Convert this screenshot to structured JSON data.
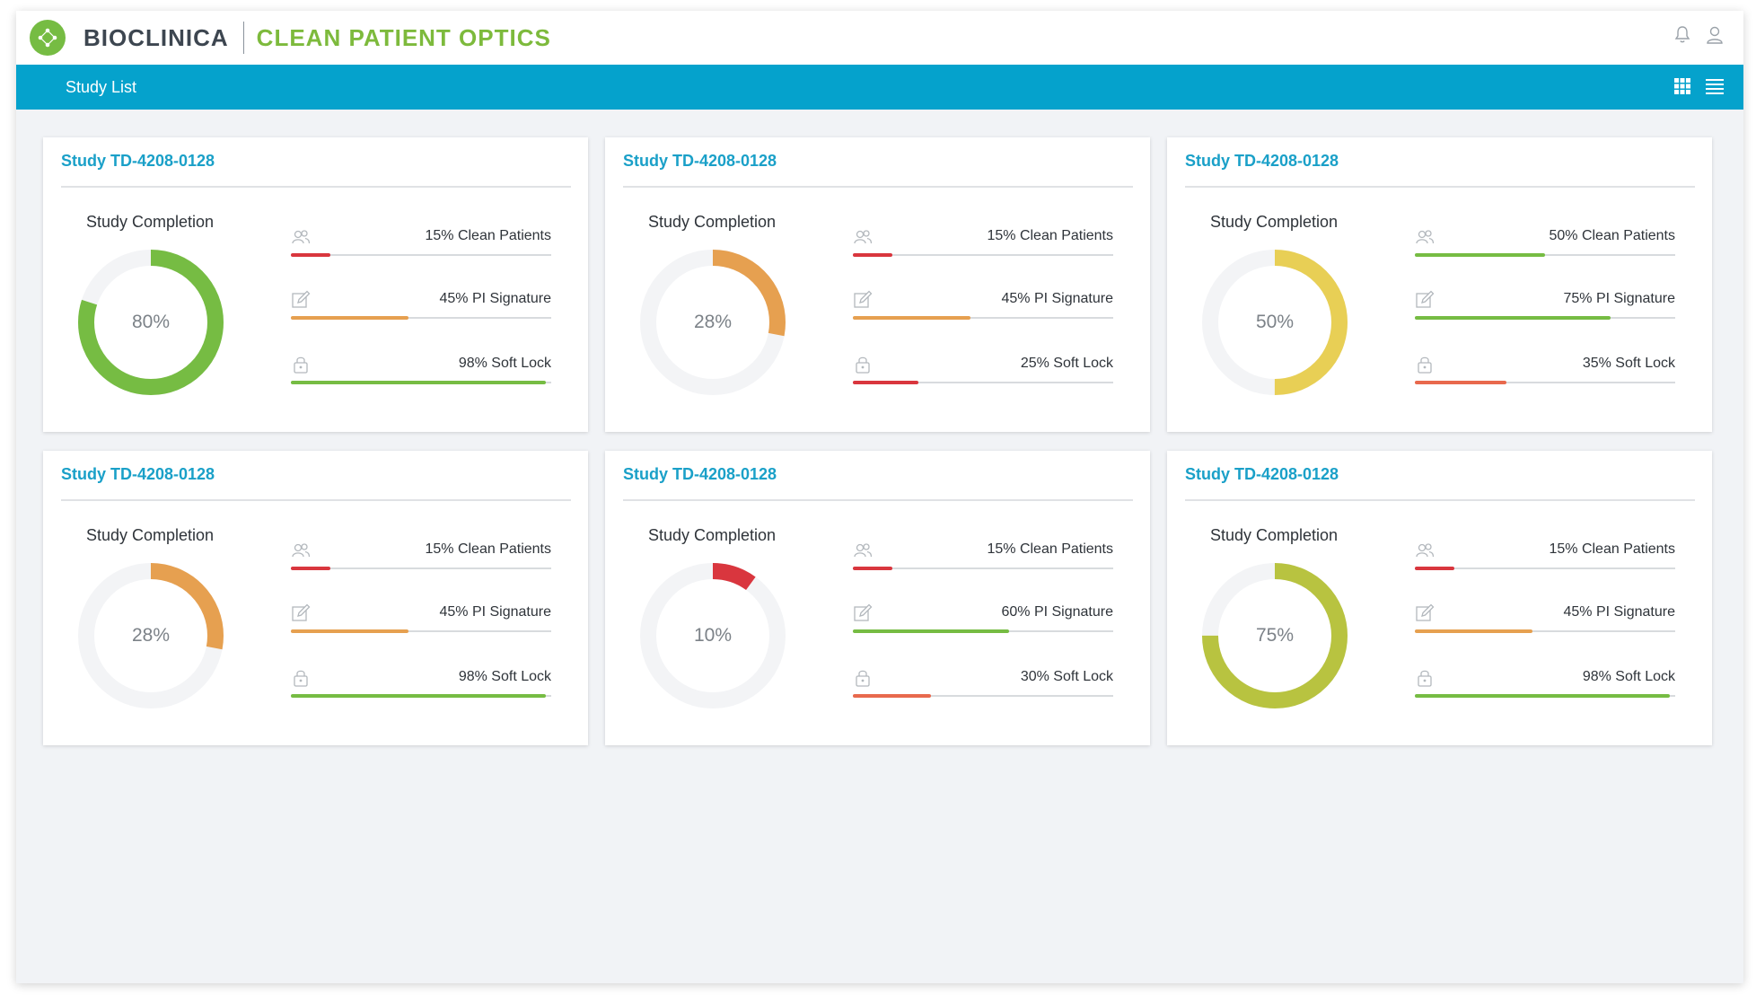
{
  "header": {
    "brand": "BIOCLINICA",
    "product": "CLEAN PATIENT OPTICS",
    "icons": [
      "logo-icon",
      "bell-icon",
      "user-icon"
    ]
  },
  "navbar": {
    "title": "Study List",
    "icons": [
      "grid-view-icon",
      "list-view-icon"
    ]
  },
  "colors": {
    "brand_blue": "#05a2cc",
    "brand_green": "#76bc43",
    "red": "#d9363e",
    "orange": "#e6a050",
    "green": "#76bc43",
    "yellow": "#e8cf55",
    "olive": "#b8c340",
    "coral": "#e8694d"
  },
  "studies": [
    {
      "title": "Study TD-4208-0128",
      "completion_label": "Study Completion",
      "completion_text": "80%",
      "completion_value": 80,
      "completion_color": "#76bc43",
      "metrics": [
        {
          "label": "15% Clean Patients",
          "value": 15,
          "color": "#d9363e",
          "icon": "patients-icon"
        },
        {
          "label": "45% PI Signature",
          "value": 45,
          "color": "#e6a050",
          "icon": "signature-icon"
        },
        {
          "label": "98% Soft Lock",
          "value": 98,
          "color": "#76bc43",
          "icon": "lock-icon"
        }
      ]
    },
    {
      "title": "Study TD-4208-0128",
      "completion_label": "Study Completion",
      "completion_text": "28%",
      "completion_value": 28,
      "completion_color": "#e6a050",
      "metrics": [
        {
          "label": "15% Clean Patients",
          "value": 15,
          "color": "#d9363e",
          "icon": "patients-icon"
        },
        {
          "label": "45% PI Signature",
          "value": 45,
          "color": "#e6a050",
          "icon": "signature-icon"
        },
        {
          "label": "25% Soft Lock",
          "value": 25,
          "color": "#d9363e",
          "icon": "lock-icon"
        }
      ]
    },
    {
      "title": "Study TD-4208-0128",
      "completion_label": "Study Completion",
      "completion_text": "50%",
      "completion_value": 50,
      "completion_color": "#e8cf55",
      "metrics": [
        {
          "label": "50% Clean Patients",
          "value": 50,
          "color": "#76bc43",
          "icon": "patients-icon"
        },
        {
          "label": "75% PI Signature",
          "value": 75,
          "color": "#76bc43",
          "icon": "signature-icon"
        },
        {
          "label": "35% Soft Lock",
          "value": 35,
          "color": "#e8694d",
          "icon": "lock-icon"
        }
      ]
    },
    {
      "title": "Study TD-4208-0128",
      "completion_label": "Study Completion",
      "completion_text": "28%",
      "completion_value": 28,
      "completion_color": "#e6a050",
      "metrics": [
        {
          "label": "15% Clean Patients",
          "value": 15,
          "color": "#d9363e",
          "icon": "patients-icon"
        },
        {
          "label": "45% PI Signature",
          "value": 45,
          "color": "#e6a050",
          "icon": "signature-icon"
        },
        {
          "label": "98% Soft Lock",
          "value": 98,
          "color": "#76bc43",
          "icon": "lock-icon"
        }
      ]
    },
    {
      "title": "Study TD-4208-0128",
      "completion_label": "Study Completion",
      "completion_text": "10%",
      "completion_value": 10,
      "completion_color": "#d9363e",
      "metrics": [
        {
          "label": "15% Clean Patients",
          "value": 15,
          "color": "#d9363e",
          "icon": "patients-icon"
        },
        {
          "label": "60% PI Signature",
          "value": 60,
          "color": "#76bc43",
          "icon": "signature-icon"
        },
        {
          "label": "30% Soft Lock",
          "value": 30,
          "color": "#e8694d",
          "icon": "lock-icon"
        }
      ]
    },
    {
      "title": "Study TD-4208-0128",
      "completion_label": "Study Completion",
      "completion_text": "75%",
      "completion_value": 75,
      "completion_color": "#b8c340",
      "metrics": [
        {
          "label": "15% Clean Patients",
          "value": 15,
          "color": "#d9363e",
          "icon": "patients-icon"
        },
        {
          "label": "45% PI Signature",
          "value": 45,
          "color": "#e6a050",
          "icon": "signature-icon"
        },
        {
          "label": "98% Soft Lock",
          "value": 98,
          "color": "#76bc43",
          "icon": "lock-icon"
        }
      ]
    }
  ]
}
